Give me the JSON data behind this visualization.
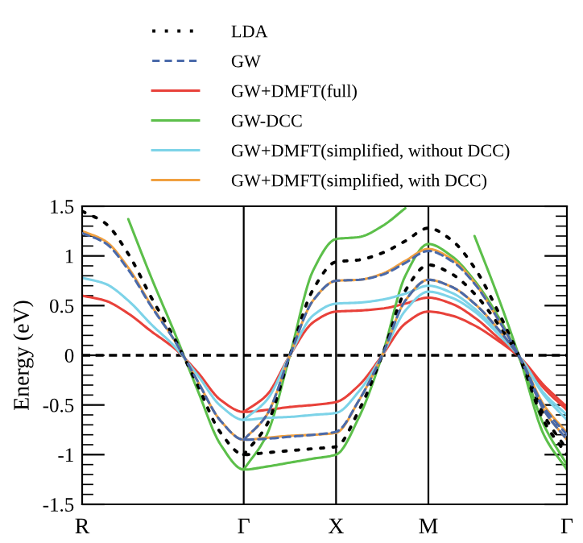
{
  "chart_data": {
    "type": "line",
    "ylabel": "Energy (eV)",
    "categories": [
      "R",
      null,
      null,
      null,
      null,
      null,
      null,
      "Γ",
      null,
      null,
      null,
      "X",
      null,
      null,
      null,
      "M",
      null,
      null,
      null,
      null,
      null,
      "Γ"
    ],
    "ylim": [
      -1.5,
      1.5
    ],
    "yticks": [
      -1.5,
      -1,
      -0.5,
      0,
      0.5,
      1,
      1.5
    ],
    "grid": false,
    "legend": "top",
    "marker": "none",
    "ref_lines": [
      {
        "axis": "y",
        "value": 0,
        "color": "#000000",
        "line_style": "dashed"
      },
      {
        "axis": "x",
        "value": "Γ",
        "color": "#000000",
        "line_style": "solid"
      },
      {
        "axis": "x",
        "value": "X",
        "color": "#000000",
        "line_style": "solid"
      },
      {
        "axis": "x",
        "value": "M",
        "color": "#000000",
        "line_style": "solid"
      }
    ],
    "series": [
      {
        "name": "LDA",
        "color": "#000000",
        "line_style": "dotted",
        "values": [
          1.45,
          1.33,
          1.02,
          0.58,
          0.17,
          -0.3,
          -0.78,
          -1.0,
          -0.98,
          -0.96,
          -0.94,
          -0.92,
          -0.55,
          0,
          0.65,
          0.91,
          0.82,
          0.62,
          0.32,
          -0.05,
          -0.6,
          -0.95
        ]
      },
      {
        "color": "#000000",
        "line_style": "dotted",
        "values": [
          null,
          null,
          null,
          null,
          null,
          null,
          null,
          -1.0,
          -0.7,
          0,
          0.66,
          0.94,
          0.96,
          1.03,
          1.15,
          1.28,
          1.16,
          0.88,
          0.45,
          -0.05,
          -0.66,
          -1.0
        ]
      },
      {
        "name": "GW",
        "color": "#4a6aaa",
        "line_style": "dashed",
        "values": [
          1.23,
          1.13,
          0.86,
          0.49,
          0.15,
          -0.26,
          -0.66,
          -0.85,
          -0.84,
          -0.82,
          -0.8,
          -0.77,
          -0.45,
          0,
          0.55,
          0.76,
          0.69,
          0.52,
          0.27,
          -0.04,
          -0.52,
          -0.8
        ]
      },
      {
        "color": "#4a6aaa",
        "line_style": "dashed",
        "values": [
          null,
          null,
          null,
          null,
          null,
          null,
          null,
          -0.85,
          -0.6,
          0,
          0.55,
          0.75,
          0.76,
          0.81,
          0.93,
          1.05,
          0.95,
          0.72,
          0.37,
          -0.04,
          -0.55,
          -0.85
        ]
      },
      {
        "name": "GW+DMFT(full)",
        "color": "#e8413a",
        "line_style": "solid",
        "values": [
          0.6,
          0.55,
          0.42,
          0.24,
          0.07,
          -0.17,
          -0.45,
          -0.57,
          -0.55,
          -0.52,
          -0.5,
          -0.47,
          -0.3,
          0,
          0.32,
          0.44,
          0.4,
          0.3,
          0.15,
          -0.03,
          -0.3,
          -0.52
        ]
      },
      {
        "color": "#e8413a",
        "line_style": "solid",
        "values": [
          null,
          null,
          null,
          null,
          null,
          null,
          null,
          -0.57,
          -0.4,
          0,
          0.33,
          0.44,
          0.45,
          0.47,
          0.52,
          0.58,
          0.52,
          0.38,
          0.18,
          -0.03,
          -0.33,
          -0.55
        ]
      },
      {
        "name": "GW-DCC",
        "color": "#5cbf4a",
        "line_style": "solid",
        "values": [
          null,
          null,
          1.37,
          0.78,
          0.23,
          -0.35,
          -0.9,
          -1.15,
          -1.12,
          -1.08,
          -1.04,
          -1.0,
          -0.62,
          0,
          0.8,
          1.12,
          1.0,
          0.75,
          0.4,
          -0.06,
          -0.7,
          -1.1
        ]
      },
      {
        "color": "#5cbf4a",
        "line_style": "solid",
        "values": [
          null,
          null,
          null,
          null,
          null,
          null,
          null,
          -1.15,
          -0.8,
          0,
          0.85,
          1.17,
          1.19,
          1.3,
          1.48,
          null,
          null,
          1.2,
          0.6,
          -0.06,
          -0.8,
          -1.15
        ]
      },
      {
        "name": "GW+DMFT(simplified, without DCC)",
        "color": "#7dd3e8",
        "line_style": "solid",
        "values": [
          0.78,
          0.72,
          0.55,
          0.31,
          0.09,
          -0.2,
          -0.51,
          -0.65,
          -0.63,
          -0.62,
          -0.6,
          -0.58,
          -0.36,
          0,
          0.45,
          0.64,
          0.58,
          0.44,
          0.22,
          -0.03,
          -0.38,
          -0.6
        ]
      },
      {
        "color": "#7dd3e8",
        "line_style": "solid",
        "values": [
          null,
          null,
          null,
          null,
          null,
          null,
          null,
          -0.65,
          -0.45,
          0,
          0.4,
          0.52,
          0.53,
          0.56,
          0.62,
          0.7,
          0.63,
          0.47,
          0.24,
          -0.03,
          -0.4,
          -0.65
        ]
      },
      {
        "name": "GW+DMFT(simplified, with DCC)",
        "color": "#f0a040",
        "line_style": "solid",
        "values": [
          1.25,
          1.15,
          0.88,
          0.5,
          0.15,
          -0.26,
          -0.66,
          -0.85,
          -0.83,
          -0.81,
          -0.8,
          -0.78,
          -0.45,
          0,
          0.55,
          0.76,
          0.69,
          0.52,
          0.27,
          -0.04,
          -0.5,
          -0.78
        ]
      },
      {
        "color": "#f0a040",
        "line_style": "solid",
        "values": [
          null,
          null,
          null,
          null,
          null,
          null,
          null,
          -0.85,
          -0.6,
          0,
          0.55,
          0.75,
          0.76,
          0.82,
          0.95,
          1.07,
          0.97,
          0.73,
          0.37,
          -0.04,
          -0.55,
          -0.85
        ]
      }
    ]
  }
}
